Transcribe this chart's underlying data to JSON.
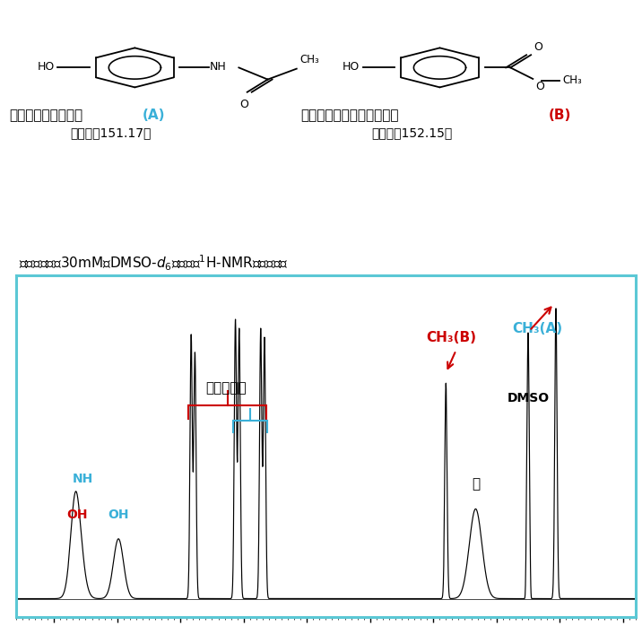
{
  "border_color": "#5bc8d5",
  "colors": {
    "spectrum_line": "#000000",
    "red": "#cc0000",
    "blue": "#3ab0d8",
    "black": "#000000"
  },
  "label_A_name": "アセトアミノフェン",
  "label_A_letter": "(A)",
  "label_A_mw": "（分子量151.17）",
  "label_B_name": "ヒドロキシ安息香酸メチル",
  "label_B_letter": "(B)",
  "label_B_mw": "（分子量152.15）",
  "title_line": "混合溶液（匄30mM　DMSO-の¹H-NMRスペクトル",
  "label_NH": "NH",
  "label_OH_red": "OH",
  "label_OH_blue": "OH",
  "label_benzene": "ベンゼン環",
  "label_water": "水",
  "label_DMSO": "DMSO",
  "label_CH3B": "CH₃(B)",
  "label_CH3A": "CH₃(A)"
}
